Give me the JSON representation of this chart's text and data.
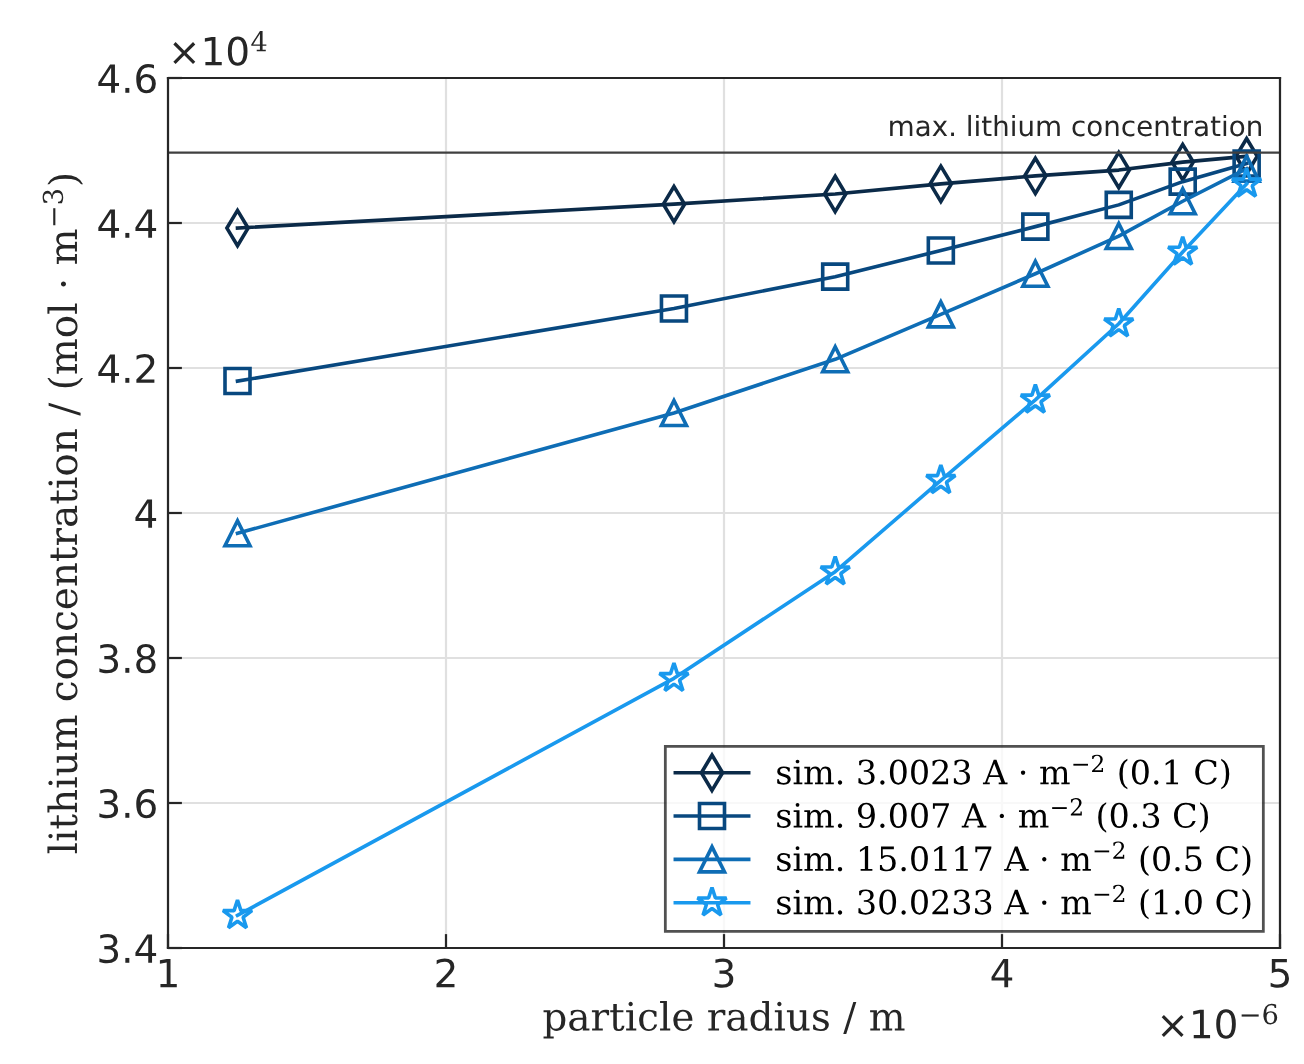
{
  "chart_data": {
    "type": "line",
    "xlabel": "particle radius / m",
    "ylabel": "lithium concentration / (mol · m$^{−3}$)",
    "xlim": [
      1,
      5
    ],
    "xticks": [
      1,
      2,
      3,
      4,
      5
    ],
    "ylim": [
      3.4,
      4.6
    ],
    "yticks": [
      3.4,
      3.6,
      3.8,
      {
        "value": 4,
        "label": "4"
      },
      4.2,
      4.4,
      4.6
    ],
    "grid": true,
    "legend": "bottom right",
    "line_style": "solid",
    "x": [
      1.25,
      2.82,
      3.4,
      3.78,
      4.12,
      4.42,
      4.65,
      4.88
    ],
    "series": [
      {
        "name": "sim. 3.0023 A · m$^{−2}$ (0.1 C)",
        "color": "#0b2a48",
        "marker": "diamond",
        "values": [
          4.393,
          4.426,
          4.44,
          4.454,
          4.465,
          4.473,
          4.484,
          4.492
        ]
      },
      {
        "name": "sim. 9.007 A · m$^{−2}$ (0.3 C)",
        "color": "#08487f",
        "marker": "square",
        "values": [
          4.182,
          4.282,
          4.326,
          4.362,
          4.395,
          4.425,
          4.457,
          4.482
        ]
      },
      {
        "name": "sim. 15.0117 A · m$^{−2}$ (0.5 C)",
        "color": "#0e6db5",
        "marker": "triangle",
        "values": [
          3.972,
          4.138,
          4.212,
          4.274,
          4.33,
          4.382,
          4.43,
          4.475
        ]
      },
      {
        "name": "sim. 30.0233 A · m$^{−2}$ (1.0 C)",
        "color": "#1999ee",
        "marker": "star",
        "values": [
          3.445,
          3.772,
          3.919,
          4.045,
          4.156,
          4.261,
          4.36,
          4.454
        ]
      }
    ],
    "ref_lines": [
      {
        "axis": "y",
        "value": 4.497,
        "label": "max. lithium concentration",
        "color": "#404040"
      }
    ],
    "annotations": [
      "×10$^{4}$",
      "×10$^{−6}$"
    ]
  }
}
